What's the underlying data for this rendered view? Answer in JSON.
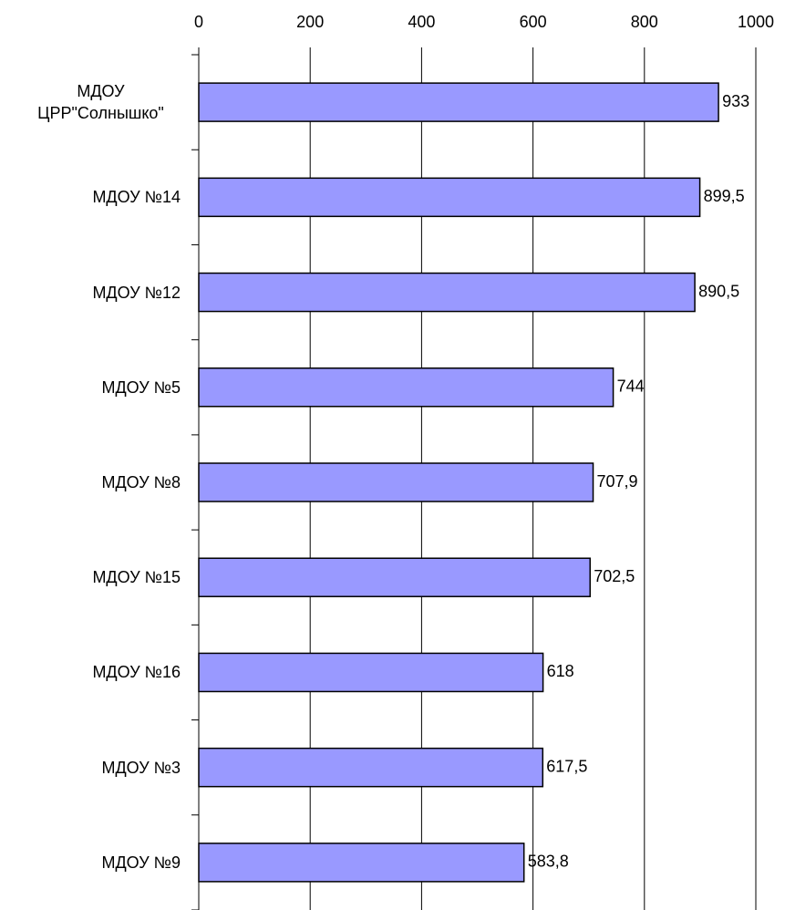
{
  "chart_data": {
    "type": "bar",
    "orientation": "horizontal",
    "categories": [
      "МДОУ ЦРР\"Солнышко\"",
      "МДОУ №14",
      "МДОУ №12",
      "МДОУ №5",
      "МДОУ №8",
      "МДОУ №15",
      "МДОУ №16",
      "МДОУ №3",
      "МДОУ №9"
    ],
    "values": [
      933,
      899.5,
      890.5,
      744,
      707.9,
      702.5,
      618,
      617.5,
      583.8
    ],
    "value_labels": [
      "933",
      "899,5",
      "890,5",
      "744",
      "707,9",
      "702,5",
      "618",
      "617,5",
      "583,8"
    ],
    "color": "#9999ff",
    "xlim": [
      0,
      1000
    ],
    "xticks": [
      0,
      200,
      400,
      600,
      800,
      1000
    ],
    "grid": true
  }
}
